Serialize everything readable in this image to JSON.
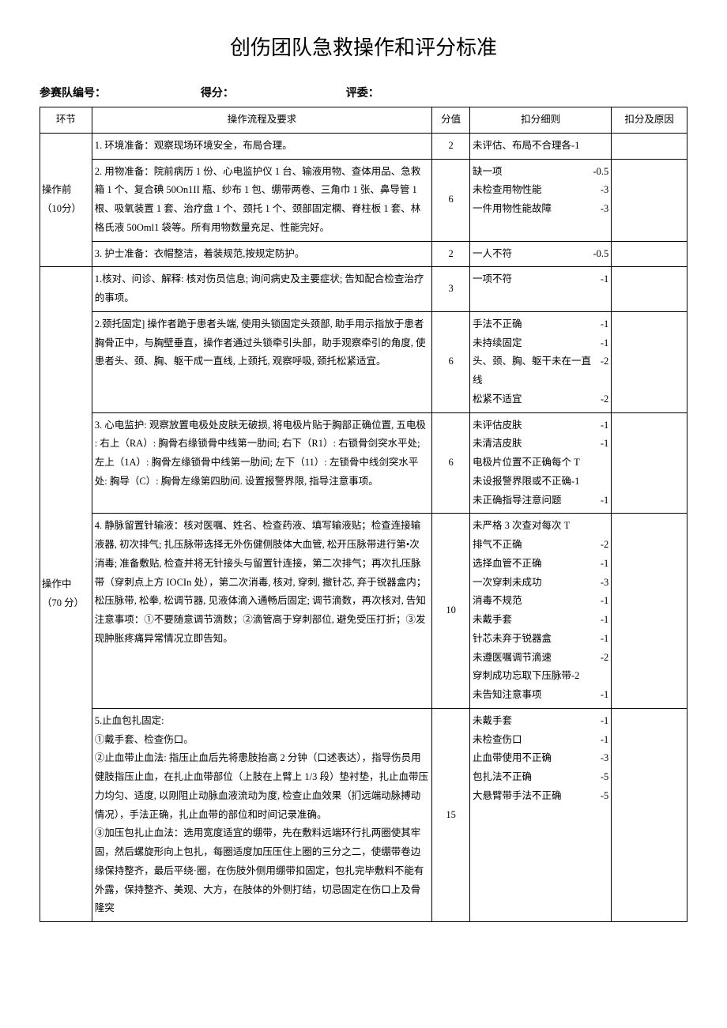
{
  "title": "创伤团队急救操作和评分标准",
  "header": {
    "team_label": "参赛队编号：",
    "score_label": "得分：",
    "judge_label": "评委："
  },
  "columns": {
    "stage": "环节",
    "procedure": "操作流程及要求",
    "score": "分值",
    "deduction": "扣分细则",
    "reason": "扣分及原因"
  },
  "stages": [
    {
      "label": "操作前（10分）",
      "rows": [
        {
          "procedure": "1. 环境准备：观察现场环境安全，布局合理。",
          "score": "2",
          "deductions": [
            {
              "text": "未评估、布局不合理各-1",
              "val": ""
            }
          ]
        },
        {
          "procedure": "2. 用物准备：院前病历 1 份、心电监护仪 1 台、输液用物、查体用品、急救箱 1 个、复合碘 50On1II 瓶、纱布 1 包、绷带两卷、三角巾 1 张、鼻导管 1 根、吸氧装置 1 套、治疗盘 1 个、颈托 1 个、颈部固定㯗、脊柱板 1 套、林格氏液 50Oml1 袋等。所有用物数量充足、性能完好。",
          "score": "6",
          "deductions": [
            {
              "text": "缺一项",
              "val": "-0.5"
            },
            {
              "text": "未检查用物性能",
              "val": "-3"
            },
            {
              "text": "一件用物性能故障",
              "val": "-3"
            }
          ]
        },
        {
          "procedure": "3. 护士准备：衣帽整洁，着装规范,按规定防护。",
          "score": "2",
          "deductions": [
            {
              "text": "一人不符",
              "val": "-0.5"
            }
          ]
        }
      ]
    },
    {
      "label": "操作中（70 分）",
      "rows": [
        {
          "procedure": "1.核对、问诊、解释: 核对伤员信息; 询问病史及主要症状; 告知配合检查治疗的事项。",
          "score": "3",
          "deductions": [
            {
              "text": "一项不符",
              "val": "-1"
            }
          ]
        },
        {
          "procedure": "2.颈托固定] 操作者跪于患者头端, 使用头锁固定头颈部, 助手用示指放于患者胸骨正中，与胸壁垂直，操作者通过头锁牵引头部，助手观察牵引的角度, 使患者头、颈、胸、躯干成一直线, 上颈托, 观察呼吸, 颈托松紧适宜。",
          "score": "6",
          "deductions": [
            {
              "text": "手法不正确",
              "val": "-1"
            },
            {
              "text": "未持续固定",
              "val": "-1"
            },
            {
              "text": "头、颈、胸、躯干未在一直线",
              "val": "-2"
            },
            {
              "text": "松紧不适宜",
              "val": "-2"
            }
          ]
        },
        {
          "procedure": "3. 心电监护: 观察放置电极处皮肤无破损, 将电极片贴于胸部正确位置, 五电极 : 右上（RA）: 胸骨右缘锁骨中线第一肋间; 右下（R1）: 右锁骨剑突水平处; 左上（1A）: 胸骨左缘锁骨中线第一肋间; 左下（11）: 左锁骨中线剑突水平处: 胸导（C）: 胸骨左缘第四肋间. 设置报警界限, 指导注意事项。",
          "score": "6",
          "deductions": [
            {
              "text": "未评估皮肤",
              "val": "-1"
            },
            {
              "text": "未清洁皮肤",
              "val": "-1"
            },
            {
              "text": "电极片位置不正确每个 T",
              "val": ""
            },
            {
              "text": "未设报警界限或不正确-1",
              "val": ""
            },
            {
              "text": "未正确指导注意问题",
              "val": "-1"
            }
          ]
        },
        {
          "procedure": "4. 静脉留置针输液：核对医嘱、姓名、检查药液、填写输液贴；检查连接输液器, 初次排气; 扎压脉带选择无外伤健侧肢体大血管, 松开压脉带进行第•次消毒; 准备敷贴, 检查并将无针接头与留置针连接，第二次排气；再次扎压脉带（穿刺点上方 IOCIn 处），第二次消毒, 核对, 穿刺, 撤针芯, 弃于锐器盒内；松压脉带, 松拳, 松调节器, 见液体滴入通畅后固定; 调节滴数，再次核对, 告知注意事项：①不要随意调节滴数；②滴管高于穿刺部位, 避免受压打折；③发现肿胀疼痛异常情况立即告知。",
          "score": "10",
          "deductions": [
            {
              "text": "未严格 3 次查对每次 T",
              "val": ""
            },
            {
              "text": "排气不正确",
              "val": "-2"
            },
            {
              "text": "选择血管不正确",
              "val": "-1"
            },
            {
              "text": "一次穿刺未成功",
              "val": "-3"
            },
            {
              "text": "消毒不规范",
              "val": "-1"
            },
            {
              "text": "未戴手套",
              "val": "-1"
            },
            {
              "text": "针芯未弃于锐器盒",
              "val": "-1"
            },
            {
              "text": "未遵医嘱调节滴速",
              "val": "-2"
            },
            {
              "text": "穿刺成功忘取下压脉带-2",
              "val": ""
            },
            {
              "text": "未告知注意事项",
              "val": "-1"
            }
          ]
        },
        {
          "procedure": "5.止血包扎固定:\n①戴手套、检查伤口。\n②止血带止血法: 指压止血后先将患肢抬高 2 分钟（口述表达），指导伤员用健肢指压止血，在扎止血带部位（上肢在上臂上 1/3 段）垫衬垫，扎止血带压力均匀、适度, 以刚阻止动脉血液流动为度, 检查止血效果（扪远端动脉搏动情况），手法正确，扎止血带的部位和时间记录准确。\n③加压包扎止血法：选用宽度适宜的绷带，先在敷料远端环行扎两圈使其牢固，然后螺旋形向上包扎，每圈适度加压压住上圈的三分之二，使绷带卷边缘保持整齐，最后平绕·圈，在伤肢外侧用绷带扣固定，包扎完毕敷料不能有外露，保持整齐、美观、大方，在肢体的外侧打结，切忌固定在伤口上及骨隆突",
          "score": "15",
          "deductions": [
            {
              "text": "未戴手套",
              "val": "-1"
            },
            {
              "text": "未检查伤口",
              "val": "-1"
            },
            {
              "text": "止血带使用不正确",
              "val": "-3"
            },
            {
              "text": "包扎法不正确",
              "val": "-5"
            },
            {
              "text": "大悬臂带手法不正确",
              "val": "-5"
            }
          ]
        }
      ]
    }
  ]
}
